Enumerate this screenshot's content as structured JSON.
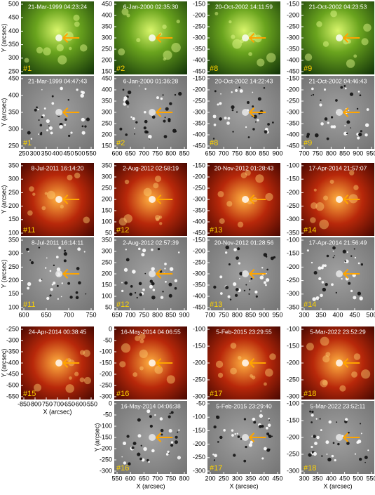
{
  "y_label": "Y (arcsec)",
  "x_label": "X (arcsec)",
  "groups": [
    {
      "columns": [
        {
          "xticks": [
            250,
            300,
            350,
            400,
            450,
            500,
            550
          ],
          "panels": [
            {
              "time": "21-Mar-1999 04:23:24",
              "label": "#1",
              "yticks": [
                500,
                450,
                400,
                350,
                300,
                250
              ]
            },
            {
              "time": "21-Mar-1999 04:47:43",
              "label": "#1",
              "yticks": [
                450,
                400,
                350,
                300,
                250
              ]
            }
          ]
        },
        {
          "xticks": [
            600,
            650,
            700,
            750,
            800,
            850
          ],
          "panels": [
            {
              "time": "6-Jan-2000 02:35:30",
              "label": "#2",
              "yticks": [
                450,
                400,
                350,
                300,
                250,
                200,
                150
              ]
            },
            {
              "time": "6-Jan-2000 01:36:28",
              "label": "#2",
              "yticks": [
                450,
                400,
                350,
                300,
                250,
                200,
                150
              ]
            }
          ]
        },
        {
          "xticks": [
            650,
            700,
            750,
            800,
            850,
            900
          ],
          "panels": [
            {
              "time": "20-Oct-2002 14:11:59",
              "label": "#8",
              "yticks": [
                -150,
                -200,
                -250,
                -300,
                -350,
                -400,
                -450
              ]
            },
            {
              "time": "20-Oct-2002 14:22:43",
              "label": "#8",
              "yticks": [
                -150,
                -200,
                -250,
                -300,
                -350,
                -400,
                -450
              ]
            }
          ]
        },
        {
          "xticks": [
            700,
            750,
            800,
            850,
            900,
            950
          ],
          "panels": [
            {
              "time": "21-Oct-2002 04:23:53",
              "label": "#9",
              "yticks": [
                -150,
                -200,
                -250,
                -300,
                -350,
                -400,
                -450
              ]
            },
            {
              "time": "21-Oct-2002 04:46:43",
              "label": "#9",
              "yticks": [
                -150,
                -200,
                -250,
                -300,
                -350,
                -400,
                -450
              ]
            }
          ]
        }
      ]
    },
    {
      "columns": [
        {
          "xticks": [
            600,
            650,
            700,
            750
          ],
          "panels": [
            {
              "time": "8-Jul-2011 16:14:20",
              "label": "#11",
              "yticks": [
                350,
                300,
                250,
                200,
                150,
                100
              ]
            },
            {
              "time": "8-Jul-2011 16:14:11",
              "label": "#11",
              "yticks": [
                350,
                300,
                250,
                200,
                150,
                100
              ]
            }
          ]
        },
        {
          "xticks": [
            650,
            700,
            750,
            800,
            850,
            900
          ],
          "panels": [
            {
              "time": "2-Aug-2012 02:58:19",
              "label": "#12",
              "yticks": [
                350,
                300,
                250,
                200,
                150,
                100,
                50
              ]
            },
            {
              "time": "2-Aug-2012 02:57:39",
              "label": "#12",
              "yticks": [
                350,
                300,
                250,
                200,
                150,
                100,
                50
              ]
            }
          ]
        },
        {
          "xticks": [
            700,
            750,
            800,
            850,
            900,
            950
          ],
          "panels": [
            {
              "time": "20-Nov-2012 01:28:43",
              "label": "#13",
              "yticks": [
                -150,
                -200,
                -250,
                -300,
                -350,
                -400,
                -450
              ]
            },
            {
              "time": "20-Nov-2012 01:28:56",
              "label": "#13",
              "yticks": [
                -150,
                -200,
                -250,
                -300,
                -350,
                -400,
                -450
              ]
            }
          ]
        },
        {
          "xticks": [
            300,
            350,
            400,
            450,
            500
          ],
          "panels": [
            {
              "time": "17-Apr-2014 21:57:07",
              "label": "#14",
              "yticks": [
                -100,
                -150,
                -200,
                -250,
                -300,
                -350
              ]
            },
            {
              "time": "17-Apr-2014 21:56:49",
              "label": "#14",
              "yticks": [
                -100,
                -150,
                -200,
                -250,
                -300,
                -350
              ]
            }
          ]
        }
      ]
    },
    {
      "columns": [
        {
          "xticks": [
            -850,
            -800,
            -750,
            -700,
            -650,
            -600,
            -550
          ],
          "panels": [
            {
              "time": "24-Apr-2014 00:38:45",
              "label": "#15",
              "yticks": [
                -250,
                -300,
                -350,
                -400,
                -450,
                -500,
                -550
              ]
            }
          ]
        },
        {
          "xticks": [
            550,
            600,
            650,
            700,
            750,
            800
          ],
          "panels": [
            {
              "time": "16-May-2014 04:06:55",
              "label": "#16",
              "yticks": [
                0,
                -50,
                -100,
                -150,
                -200,
                -250,
                -300
              ]
            },
            {
              "time": "16-May-2014 04:06:38",
              "label": "#16",
              "yticks": [
                0,
                -50,
                -100,
                -150,
                -200,
                -250,
                -300
              ]
            }
          ]
        },
        {
          "xticks": [
            200,
            250,
            300,
            350,
            400,
            450
          ],
          "panels": [
            {
              "time": "5-Feb-2015 23:29:55",
              "label": "#17",
              "yticks": [
                -100,
                -150,
                -200,
                -250,
                -300
              ]
            },
            {
              "time": "5-Feb-2015 23:29:40",
              "label": "#17",
              "yticks": [
                -50,
                -100,
                -150,
                -200,
                -250,
                -300
              ]
            }
          ]
        },
        {
          "xticks": [
            300,
            350,
            400,
            450,
            500,
            550
          ],
          "panels": [
            {
              "time": "5-Mar-2022 23:52:29",
              "label": "#18",
              "yticks": [
                -100,
                -150,
                -200,
                -250,
                -300
              ]
            },
            {
              "time": "5-Mar-2022 23:52:11",
              "label": "#18",
              "yticks": [
                -100,
                -150,
                -200,
                -250,
                -300
              ]
            }
          ]
        }
      ]
    }
  ]
}
